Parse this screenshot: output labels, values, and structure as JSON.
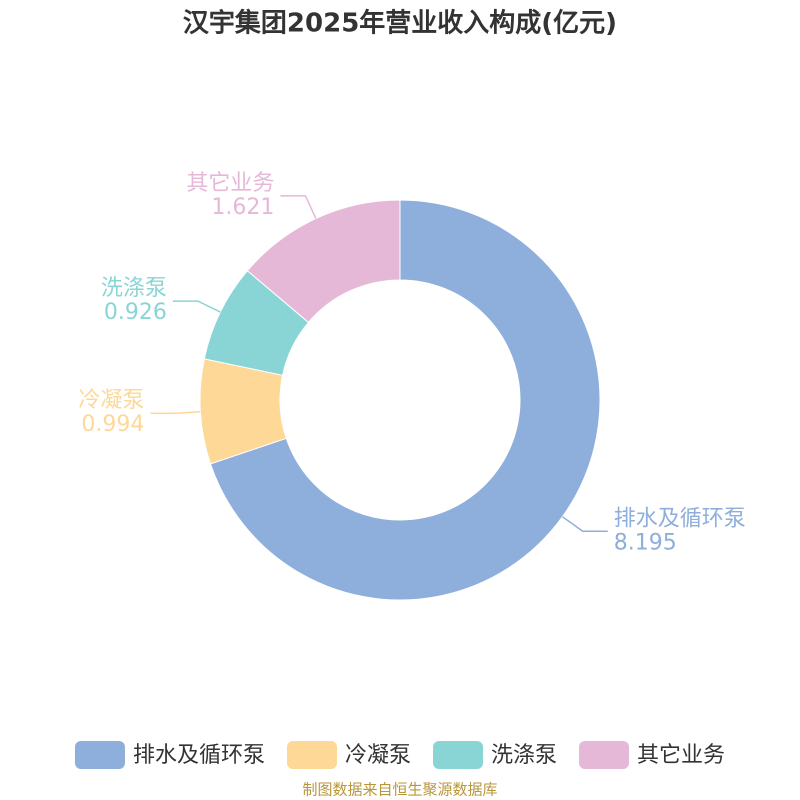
{
  "chart_data": {
    "type": "pie",
    "title": "汉宇集团2025年营业收入构成(亿元)",
    "categories": [
      "排水及循环泵",
      "冷凝泵",
      "洗涤泵",
      "其它业务"
    ],
    "values": [
      8.195,
      0.994,
      0.926,
      1.621
    ],
    "colors": [
      "#8eaedb",
      "#fdd897",
      "#89d5d6",
      "#e6b8d8"
    ],
    "legend": "bottom",
    "source": "制图数据来自恒生聚源数据库"
  }
}
